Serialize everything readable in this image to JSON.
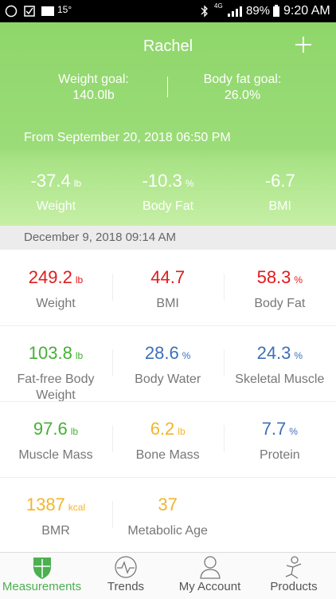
{
  "status_bar": {
    "temperature": "15°",
    "network": "4G",
    "battery": "89%",
    "time": "9:20 AM"
  },
  "header": {
    "name": "Rachel",
    "weight_goal_label": "Weight goal:",
    "weight_goal": "140.0lb",
    "body_fat_goal_label": "Body fat goal:",
    "body_fat_goal": "26.0%",
    "since": "From September 20, 2018 06:50 PM",
    "changes": [
      {
        "value": "-37.4",
        "unit": "lb",
        "label": "Weight"
      },
      {
        "value": "-10.3",
        "unit": "%",
        "label": "Body Fat"
      },
      {
        "value": "-6.7",
        "label": "BMI"
      }
    ]
  },
  "date": "December 9, 2018 09:14 AM",
  "metrics": [
    {
      "value": "249.2",
      "unit": "lb",
      "label": "Weight",
      "color": "#e01b1b"
    },
    {
      "value": "44.7",
      "label": "BMI",
      "color": "#e01b1b"
    },
    {
      "value": "58.3",
      "unit": "%",
      "label": "Body Fat",
      "color": "#e01b1b"
    },
    {
      "value": "103.8",
      "unit": "lb",
      "label": "Fat-free Body Weight",
      "color": "#45b035"
    },
    {
      "value": "28.6",
      "unit": "%",
      "label": "Body Water",
      "color": "#3c70b8"
    },
    {
      "value": "24.3",
      "unit": "%",
      "label": "Skeletal Muscle",
      "color": "#3c70b8"
    },
    {
      "value": "97.6",
      "unit": "lb",
      "label": "Muscle Mass",
      "color": "#45b035"
    },
    {
      "value": "6.2",
      "unit": "lb",
      "label": "Bone Mass",
      "color": "#f2b52a"
    },
    {
      "value": "7.7",
      "unit": "%",
      "label": "Protein",
      "color": "#3c70b8"
    },
    {
      "value": "1387",
      "unit": "kcal",
      "label": "BMR",
      "color": "#f2b52a"
    },
    {
      "value": "37",
      "label": "Metabolic Age",
      "color": "#f2b52a"
    }
  ],
  "nav": [
    {
      "label": "Measurements"
    },
    {
      "label": "Trends"
    },
    {
      "label": "My Account"
    },
    {
      "label": "Products"
    }
  ]
}
